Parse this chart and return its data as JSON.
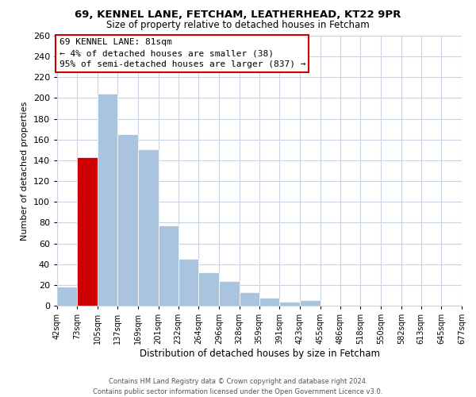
{
  "title_line1": "69, KENNEL LANE, FETCHAM, LEATHERHEAD, KT22 9PR",
  "title_line2": "Size of property relative to detached houses in Fetcham",
  "xlabel": "Distribution of detached houses by size in Fetcham",
  "ylabel": "Number of detached properties",
  "bin_edges": [
    42,
    73,
    105,
    137,
    169,
    201,
    232,
    264,
    296,
    328,
    359,
    391,
    423,
    455,
    486,
    518,
    550,
    582,
    613,
    645,
    677
  ],
  "bar_heights": [
    18,
    143,
    204,
    165,
    151,
    77,
    45,
    32,
    24,
    13,
    8,
    4,
    5,
    0,
    1,
    0,
    0,
    0,
    0,
    1
  ],
  "bar_color_normal": "#a8c4de",
  "bar_color_highlight": "#cc0000",
  "highlight_bin_index": 1,
  "annotation_title": "69 KENNEL LANE: 81sqm",
  "annotation_line2": "← 4% of detached houses are smaller (38)",
  "annotation_line3": "95% of semi-detached houses are larger (837) →",
  "annotation_box_color": "#ffffff",
  "annotation_box_edge": "#cc0000",
  "ylim": [
    0,
    260
  ],
  "yticks": [
    0,
    20,
    40,
    60,
    80,
    100,
    120,
    140,
    160,
    180,
    200,
    220,
    240,
    260
  ],
  "footer_line1": "Contains HM Land Registry data © Crown copyright and database right 2024.",
  "footer_line2": "Contains public sector information licensed under the Open Government Licence v3.0.",
  "background_color": "#ffffff",
  "grid_color": "#c8d4e4",
  "tick_labels": [
    "42sqm",
    "73sqm",
    "105sqm",
    "137sqm",
    "169sqm",
    "201sqm",
    "232sqm",
    "264sqm",
    "296sqm",
    "328sqm",
    "359sqm",
    "391sqm",
    "423sqm",
    "455sqm",
    "486sqm",
    "518sqm",
    "550sqm",
    "582sqm",
    "613sqm",
    "645sqm",
    "677sqm"
  ]
}
